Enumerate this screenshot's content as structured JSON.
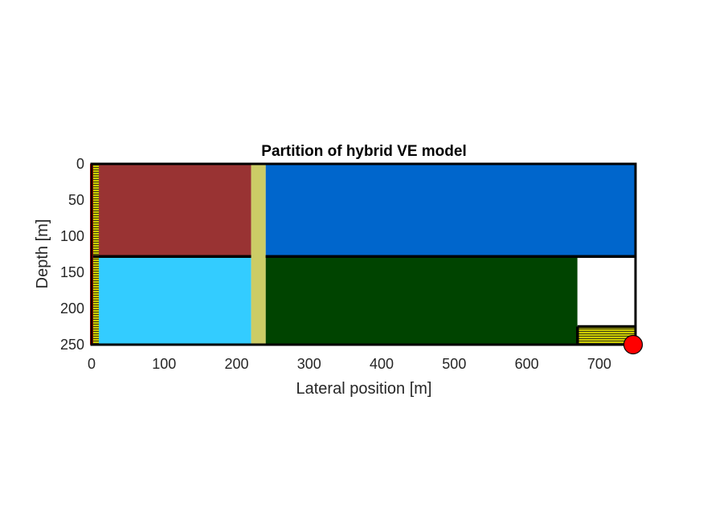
{
  "chart_data": {
    "type": "heatmap",
    "title": "Partition of hybrid VE model",
    "xlabel": "Lateral position [m]",
    "ylabel": "Depth [m]",
    "xlim": [
      0,
      750
    ],
    "ylim": [
      0,
      250
    ],
    "y_reversed": true,
    "xticks": [
      0,
      100,
      200,
      300,
      400,
      500,
      600,
      700
    ],
    "yticks": [
      0,
      50,
      100,
      150,
      200,
      250
    ],
    "grid": false,
    "regions": [
      {
        "x0": 10,
        "x1": 220,
        "y0": 0,
        "y1": 128,
        "color": "#993333"
      },
      {
        "x0": 240,
        "x1": 750,
        "y0": 0,
        "y1": 128,
        "color": "#0066cc"
      },
      {
        "x0": 10,
        "x1": 220,
        "y0": 128,
        "y1": 250,
        "color": "#33ccff"
      },
      {
        "x0": 240,
        "x1": 670,
        "y0": 128,
        "y1": 250,
        "color": "#004400"
      },
      {
        "x0": 220,
        "x1": 240,
        "y0": 0,
        "y1": 250,
        "color": "#cccc66"
      },
      {
        "x0": 670,
        "x1": 750,
        "y0": 128,
        "y1": 225,
        "color": "#ffffff"
      }
    ],
    "hatched_regions": [
      {
        "x0": 0,
        "x1": 10,
        "y0": 0,
        "y1": 250,
        "color": "#cccc00"
      },
      {
        "x0": 670,
        "x1": 750,
        "y0": 225,
        "y1": 250,
        "color": "#cccc00"
      }
    ],
    "boundary_lines": [
      {
        "x0": 0,
        "x1": 220,
        "y0": 128,
        "y1": 128
      },
      {
        "x0": 240,
        "x1": 750,
        "y0": 128,
        "y1": 128
      },
      {
        "x0": 670,
        "x1": 750,
        "y0": 225,
        "y1": 225
      },
      {
        "x0": 670,
        "x1": 670,
        "y0": 225,
        "y1": 250
      }
    ],
    "left_edge_line": {
      "x": 0,
      "y0": 0,
      "y1": 250,
      "color": "#ff0000"
    },
    "markers": [
      {
        "x": 750,
        "y": 250,
        "color": "#ff0000"
      }
    ]
  }
}
